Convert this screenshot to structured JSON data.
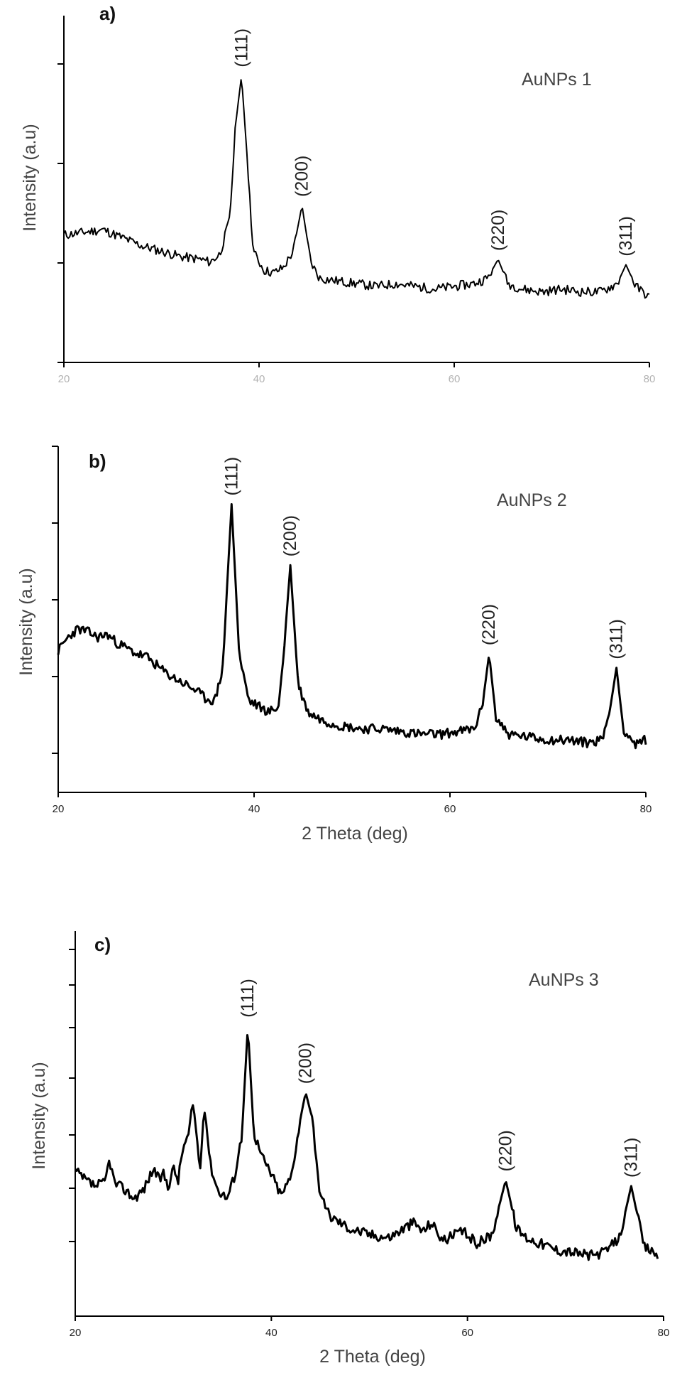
{
  "chart_data": [
    {
      "type": "line",
      "panel_label": "a)",
      "sample_label": "AuNPs 1",
      "ylabel": "Intensity (a.u)",
      "xlabel": "",
      "xlim": [
        20,
        80
      ],
      "ylim": [
        0,
        1
      ],
      "x_ticks": [
        "20",
        "40",
        "60",
        "80"
      ],
      "grid": false,
      "legend": "none",
      "line_color": "#000000",
      "peaks": [
        {
          "label": "(111)",
          "x": 38.2,
          "y": 0.93
        },
        {
          "label": "(200)",
          "x": 44.4,
          "y": 0.45
        },
        {
          "label": "(220)",
          "x": 64.5,
          "y": 0.25
        },
        {
          "label": "(311)",
          "x": 77.6,
          "y": 0.23
        }
      ],
      "series": [
        {
          "x": [
            20,
            22,
            24,
            26,
            28,
            30,
            32,
            34,
            35,
            36,
            37,
            37.6,
            38.2,
            38.8,
            39.4,
            40.5,
            41.5,
            42.5,
            43.5,
            44.4,
            45.3,
            46.2,
            48,
            50,
            52,
            54,
            56,
            58,
            60,
            62,
            63.4,
            64.5,
            65.5,
            67,
            69,
            71,
            73,
            75,
            76.7,
            77.6,
            78.6,
            80
          ],
          "y": [
            0.34,
            0.35,
            0.36,
            0.33,
            0.3,
            0.28,
            0.26,
            0.25,
            0.24,
            0.27,
            0.4,
            0.75,
            0.93,
            0.62,
            0.28,
            0.21,
            0.2,
            0.22,
            0.28,
            0.45,
            0.24,
            0.18,
            0.17,
            0.16,
            0.15,
            0.16,
            0.15,
            0.14,
            0.15,
            0.16,
            0.18,
            0.25,
            0.16,
            0.14,
            0.13,
            0.14,
            0.13,
            0.13,
            0.16,
            0.23,
            0.15,
            0.11
          ]
        }
      ]
    },
    {
      "type": "line",
      "panel_label": "b)",
      "sample_label": "AuNPs 2",
      "ylabel": "Intensity (a.u)",
      "xlabel": "2 Theta (deg)",
      "xlim": [
        20,
        80
      ],
      "ylim": [
        0,
        1
      ],
      "x_ticks": [
        "20",
        "40",
        "60",
        "80"
      ],
      "grid": false,
      "legend": "none",
      "line_color": "#000000",
      "peaks": [
        {
          "label": "(111)",
          "x": 37.7,
          "y": 0.95
        },
        {
          "label": "(200)",
          "x": 43.7,
          "y": 0.73
        },
        {
          "label": "(220)",
          "x": 64.0,
          "y": 0.41
        },
        {
          "label": "(311)",
          "x": 77.0,
          "y": 0.36
        }
      ],
      "series": [
        {
          "x": [
            20,
            21,
            22,
            23,
            24,
            25,
            26,
            27,
            28,
            29,
            30,
            31,
            32,
            33,
            34,
            35,
            36,
            36.8,
            37.7,
            38.5,
            39.5,
            40.5,
            41.5,
            42.5,
            43.0,
            43.7,
            44.5,
            45.5,
            47,
            49,
            51,
            53,
            55,
            57,
            59,
            61,
            62.5,
            63.3,
            64.0,
            64.7,
            66,
            68,
            70,
            72,
            74,
            75.5,
            76.3,
            77.0,
            77.7,
            79,
            80
          ],
          "y": [
            0.42,
            0.47,
            0.5,
            0.49,
            0.47,
            0.48,
            0.45,
            0.43,
            0.41,
            0.4,
            0.37,
            0.34,
            0.32,
            0.3,
            0.28,
            0.25,
            0.24,
            0.36,
            0.95,
            0.4,
            0.24,
            0.22,
            0.2,
            0.22,
            0.4,
            0.73,
            0.3,
            0.2,
            0.17,
            0.15,
            0.14,
            0.14,
            0.13,
            0.12,
            0.12,
            0.13,
            0.14,
            0.22,
            0.41,
            0.18,
            0.12,
            0.11,
            0.1,
            0.1,
            0.09,
            0.1,
            0.2,
            0.36,
            0.14,
            0.08,
            0.1
          ]
        }
      ]
    },
    {
      "type": "line",
      "panel_label": "c)",
      "sample_label": "AuNPs 3",
      "ylabel": "Intensity (a.u)",
      "xlabel": "2 Theta (deg)",
      "xlim": [
        20,
        80
      ],
      "ylim": [
        0,
        1
      ],
      "x_ticks": [
        "20",
        "40",
        "60",
        "80"
      ],
      "grid": false,
      "legend": "none",
      "line_color": "#000000",
      "peaks": [
        {
          "label": "(111)",
          "x": 37.6,
          "y": 0.85
        },
        {
          "label": "(200)",
          "x": 43.5,
          "y": 0.63
        },
        {
          "label": "(220)",
          "x": 63.9,
          "y": 0.34
        },
        {
          "label": "(311)",
          "x": 76.7,
          "y": 0.32
        }
      ],
      "series": [
        {
          "x": [
            20,
            21,
            22,
            23,
            23.5,
            24,
            25,
            26,
            27,
            28,
            28.5,
            29,
            29.5,
            30,
            30.5,
            31,
            31.5,
            32,
            32.3,
            32.7,
            33.2,
            33.8,
            34.5,
            35.5,
            36.3,
            37,
            37.6,
            38.2,
            39,
            40,
            41,
            42,
            43,
            43.5,
            44.2,
            45,
            46,
            48,
            50,
            52,
            54.5,
            55.5,
            56.3,
            57.5,
            59.5,
            61,
            62.5,
            63.9,
            65,
            66,
            67.5,
            69,
            71,
            72.5,
            74,
            75.5,
            76.7,
            78,
            79.5
          ],
          "y": [
            0.37,
            0.34,
            0.32,
            0.33,
            0.41,
            0.33,
            0.31,
            0.28,
            0.31,
            0.38,
            0.34,
            0.36,
            0.32,
            0.38,
            0.34,
            0.45,
            0.48,
            0.59,
            0.52,
            0.37,
            0.58,
            0.39,
            0.31,
            0.28,
            0.36,
            0.49,
            0.85,
            0.5,
            0.42,
            0.36,
            0.29,
            0.35,
            0.55,
            0.63,
            0.54,
            0.28,
            0.22,
            0.18,
            0.16,
            0.15,
            0.2,
            0.17,
            0.2,
            0.14,
            0.17,
            0.13,
            0.16,
            0.34,
            0.18,
            0.15,
            0.13,
            0.11,
            0.1,
            0.09,
            0.1,
            0.15,
            0.32,
            0.12,
            0.09
          ]
        }
      ]
    }
  ]
}
